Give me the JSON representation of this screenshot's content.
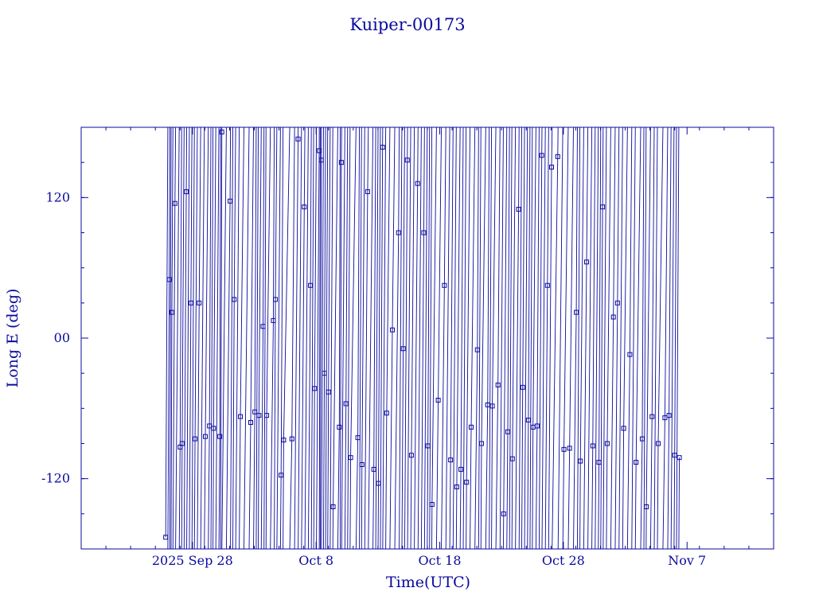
{
  "chart_data": {
    "type": "line",
    "title": "Kuiper-00173",
    "xlabel": "Time(UTC)",
    "ylabel": "Long E (deg)",
    "xlim": [
      "2025-09-19",
      "2025-11-14"
    ],
    "ylim": [
      -180,
      180
    ],
    "x_ticks": [
      {
        "date": "2025-09-28",
        "label": "2025 Sep 28"
      },
      {
        "date": "2025-10-08",
        "label": "Oct  8"
      },
      {
        "date": "2025-10-18",
        "label": "Oct 18"
      },
      {
        "date": "2025-10-28",
        "label": "Oct 28"
      },
      {
        "date": "2025-11-07",
        "label": "Nov  7"
      }
    ],
    "y_ticks": [
      {
        "value": 120,
        "label": "120"
      },
      {
        "value": 0,
        "label": "00"
      },
      {
        "value": -120,
        "label": "-120"
      }
    ],
    "grid": false,
    "line_color": "#0a0a9e",
    "series": [
      {
        "x": [
          "2025-09-25T20:00",
          "2025-09-26T03:00",
          "2025-09-26T08:00",
          "2025-09-26T14:00",
          "2025-09-27T00:00",
          "2025-09-27T04:00",
          "2025-09-27T12:00",
          "2025-09-27T21:00",
          "2025-09-28T05:00",
          "2025-09-28T13:00",
          "2025-09-29T01:00",
          "2025-09-29T09:00",
          "2025-09-29T17:00",
          "2025-09-30T05:00",
          "2025-09-30T09:00",
          "2025-10-01T01:00",
          "2025-10-01T09:00",
          "2025-10-01T21:00",
          "2025-10-02T17:00",
          "2025-10-03T01:00",
          "2025-10-03T09:00",
          "2025-10-03T17:00",
          "2025-10-04T00:00",
          "2025-10-04T13:00",
          "2025-10-04T17:00",
          "2025-10-05T04:00",
          "2025-10-05T09:00",
          "2025-10-06T01:00",
          "2025-10-06T13:00",
          "2025-10-07T01:00",
          "2025-10-07T13:00",
          "2025-10-07T21:00",
          "2025-10-08T06:00",
          "2025-10-08T10:00",
          "2025-10-08T16:00",
          "2025-10-09T00:00",
          "2025-10-09T09:00",
          "2025-10-09T21:00",
          "2025-10-10T01:00",
          "2025-10-10T10:00",
          "2025-10-10T19:00",
          "2025-10-11T09:00",
          "2025-10-11T17:00",
          "2025-10-12T04:00",
          "2025-10-12T16:00",
          "2025-10-13T01:00",
          "2025-10-13T09:00",
          "2025-10-13T17:00",
          "2025-10-14T04:00",
          "2025-10-14T16:00",
          "2025-10-15T01:00",
          "2025-10-15T09:00",
          "2025-10-15T17:00",
          "2025-10-16T05:00",
          "2025-10-16T17:00",
          "2025-10-17T01:00",
          "2025-10-17T09:00",
          "2025-10-17T21:00",
          "2025-10-18T09:00",
          "2025-10-18T21:00",
          "2025-10-19T09:00",
          "2025-10-19T17:00",
          "2025-10-20T04:00",
          "2025-10-20T13:00",
          "2025-10-21T01:00",
          "2025-10-21T09:00",
          "2025-10-21T21:00",
          "2025-10-22T06:00",
          "2025-10-22T17:00",
          "2025-10-23T04:00",
          "2025-10-23T12:00",
          "2025-10-23T21:00",
          "2025-10-24T09:00",
          "2025-10-24T17:00",
          "2025-10-25T04:00",
          "2025-10-25T13:00",
          "2025-10-25T21:00",
          "2025-10-26T06:00",
          "2025-10-26T17:00",
          "2025-10-27T01:00",
          "2025-10-27T13:00",
          "2025-10-28T01:00",
          "2025-10-28T12:00",
          "2025-10-29T01:00",
          "2025-10-29T09:00",
          "2025-10-29T21:00",
          "2025-10-30T09:00",
          "2025-10-30T21:00",
          "2025-10-31T04:00",
          "2025-10-31T13:00",
          "2025-11-01T01:00",
          "2025-11-01T09:00",
          "2025-11-01T21:00",
          "2025-11-02T09:00",
          "2025-11-02T21:00",
          "2025-11-03T09:00",
          "2025-11-03T17:00",
          "2025-11-04T04:00",
          "2025-11-04T16:00",
          "2025-11-05T05:00",
          "2025-11-05T13:00",
          "2025-11-06T00:00",
          "2025-11-06T09:00"
        ],
        "y": [
          -170,
          50,
          22,
          115,
          -93,
          -90,
          125,
          30,
          -86,
          30,
          -84,
          -75,
          -77,
          -84,
          176,
          117,
          33,
          -67,
          -72,
          -63,
          -66,
          10,
          -66,
          15,
          33,
          -117,
          -87,
          -86,
          170,
          112,
          45,
          -43,
          160,
          152,
          -30,
          -46,
          -144,
          -76,
          150,
          -56,
          -102,
          -85,
          -108,
          125,
          -112,
          -124,
          163,
          -64,
          7,
          90,
          -9,
          152,
          -100,
          132,
          90,
          -92,
          -142,
          -53,
          45,
          -104,
          -127,
          -112,
          -123,
          -76,
          -10,
          -90,
          -57,
          -58,
          -40,
          -150,
          -80,
          -103,
          110,
          -42,
          -70,
          -76,
          -75,
          156,
          45,
          146,
          155,
          -95,
          -94,
          22,
          -105,
          65,
          -92,
          -106,
          112,
          -90,
          18,
          30,
          -77,
          -14,
          -106,
          -86,
          -144,
          -67,
          -90,
          -68,
          -66,
          -100,
          -102
        ]
      }
    ]
  }
}
